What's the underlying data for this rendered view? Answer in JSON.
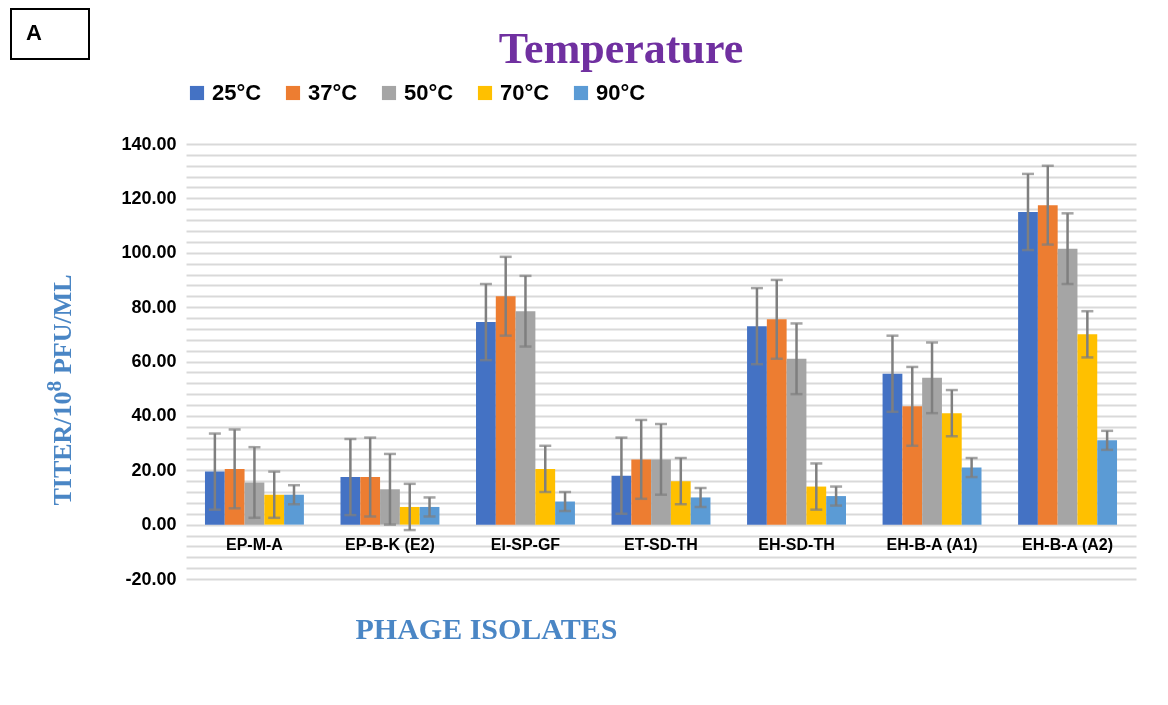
{
  "chart_data": {
    "type": "bar",
    "title": "Temperature",
    "xlabel": "PHAGE ISOLATES",
    "ylabel": "TITER/10$^{8}$ PFU/ML",
    "annotations": [
      "A"
    ],
    "categories": [
      "EP-M-A",
      "EP-B-K (E2)",
      "EI-SP-GF",
      "ET-SD-TH",
      "EH-SD-TH",
      "EH-B-A (A1)",
      "EH-B-A (A2)"
    ],
    "series": [
      {
        "name": "25°C",
        "color": "#4472c4",
        "values": [
          19.5,
          17.5,
          74.5,
          18,
          73,
          55.5,
          115
        ],
        "errors": [
          14,
          14,
          14,
          14,
          14,
          14,
          14
        ]
      },
      {
        "name": "37°C",
        "color": "#ed7d31",
        "values": [
          20.5,
          17.5,
          84,
          24,
          75.5,
          43.5,
          117.5
        ],
        "errors": [
          14.5,
          14.5,
          14.5,
          14.5,
          14.5,
          14.5,
          14.5
        ]
      },
      {
        "name": "50°C",
        "color": "#a5a5a5",
        "values": [
          15.5,
          13,
          78.5,
          24,
          61,
          54,
          101.5
        ],
        "errors": [
          13,
          13,
          13,
          13,
          13,
          13,
          13
        ]
      },
      {
        "name": "70°C",
        "color": "#ffc000",
        "values": [
          11,
          6.5,
          20.5,
          16,
          14,
          41,
          70
        ],
        "errors": [
          8.5,
          8.5,
          8.5,
          8.5,
          8.5,
          8.5,
          8.5
        ]
      },
      {
        "name": "90°C",
        "color": "#5b9bd5",
        "values": [
          11,
          6.5,
          8.5,
          10,
          10.5,
          21,
          31
        ],
        "errors": [
          3.5,
          3.5,
          3.5,
          3.5,
          3.5,
          3.5,
          3.5
        ]
      }
    ],
    "ylim": [
      -20,
      140
    ],
    "yticks": [
      {
        "value": -20,
        "label": "-20.00"
      },
      {
        "value": -16,
        "label": null
      },
      {
        "value": -12,
        "label": null
      },
      {
        "value": -8,
        "label": null
      },
      {
        "value": -4,
        "label": null
      },
      {
        "value": 0,
        "label": "0.00"
      },
      {
        "value": 4,
        "label": null
      },
      {
        "value": 8,
        "label": null
      },
      {
        "value": 12,
        "label": null
      },
      {
        "value": 16,
        "label": null
      },
      {
        "value": 20,
        "label": "20.00"
      },
      {
        "value": 24,
        "label": null
      },
      {
        "value": 28,
        "label": null
      },
      {
        "value": 32,
        "label": null
      },
      {
        "value": 36,
        "label": null
      },
      {
        "value": 40,
        "label": "40.00"
      },
      {
        "value": 44,
        "label": null
      },
      {
        "value": 48,
        "label": null
      },
      {
        "value": 52,
        "label": null
      },
      {
        "value": 56,
        "label": null
      },
      {
        "value": 60,
        "label": "60.00"
      },
      {
        "value": 64,
        "label": null
      },
      {
        "value": 68,
        "label": null
      },
      {
        "value": 72,
        "label": null
      },
      {
        "value": 76,
        "label": null
      },
      {
        "value": 80,
        "label": "80.00"
      },
      {
        "value": 84,
        "label": null
      },
      {
        "value": 88,
        "label": null
      },
      {
        "value": 92,
        "label": null
      },
      {
        "value": 96,
        "label": null
      },
      {
        "value": 100,
        "label": "100.00"
      },
      {
        "value": 104,
        "label": null
      },
      {
        "value": 108,
        "label": null
      },
      {
        "value": 112,
        "label": null
      },
      {
        "value": 116,
        "label": null
      },
      {
        "value": 120,
        "label": "120.00"
      },
      {
        "value": 124,
        "label": null
      },
      {
        "value": 128,
        "label": null
      },
      {
        "value": 132,
        "label": null
      },
      {
        "value": 136,
        "label": null
      },
      {
        "value": 140,
        "label": "140.00"
      }
    ],
    "grid": "y",
    "legend": "top"
  }
}
